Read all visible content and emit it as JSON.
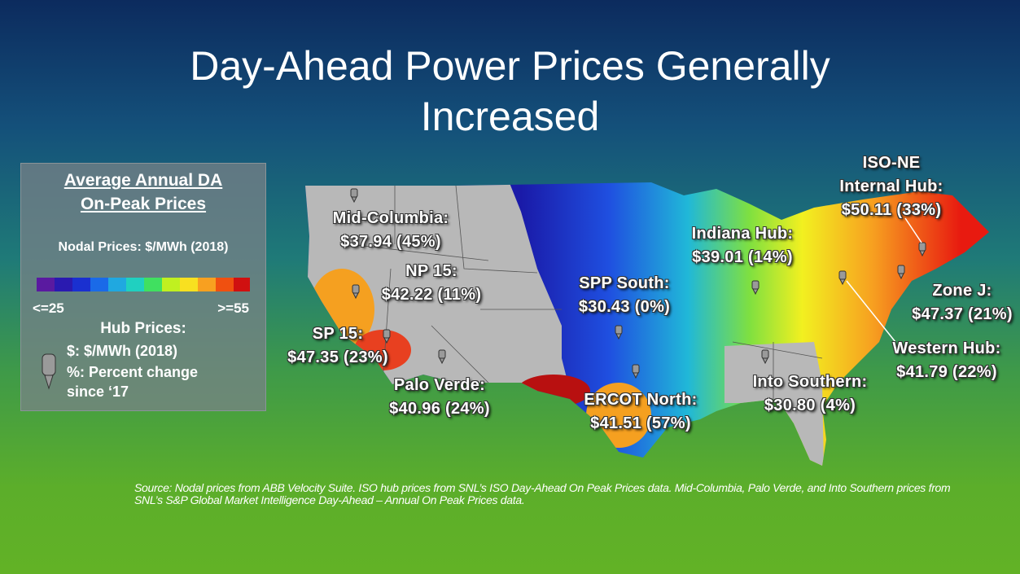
{
  "title": "Day-Ahead Power Prices Generally Increased",
  "legend": {
    "heading": "Average Annual DA On-Peak Prices",
    "nodal": "Nodal Prices: $/MWh (2018)",
    "scale_low": "<=25",
    "scale_high": ">=55",
    "hub_heading": "Hub Prices:",
    "hub_price": "$: $/MWh (2018)",
    "hub_change": "%: Percent change since ‘17"
  },
  "hubs": [
    {
      "lines": [
        "Mid-Columbia:",
        "$37.94 (45%)"
      ]
    },
    {
      "lines": [
        "NP 15:",
        "$42.22 (11%)"
      ]
    },
    {
      "lines": [
        "SP 15:",
        "$47.35 (23%)"
      ]
    },
    {
      "lines": [
        "Palo Verde:",
        "$40.96 (24%)"
      ]
    },
    {
      "lines": [
        "SPP South:",
        "$30.43 (0%)"
      ]
    },
    {
      "lines": [
        "ERCOT North:",
        "$41.51 (57%)"
      ]
    },
    {
      "lines": [
        "Indiana Hub:",
        "$39.01 (14%)"
      ]
    },
    {
      "lines": [
        "Into Southern:",
        "$30.80 (4%)"
      ]
    },
    {
      "lines": [
        "ISO-NE",
        "Internal Hub:",
        "$50.11 (33%)"
      ]
    },
    {
      "lines": [
        "Zone J:",
        "$47.37 (21%)"
      ]
    },
    {
      "lines": [
        "Western Hub:",
        "$41.79 (22%)"
      ]
    }
  ],
  "source": "Source: Nodal prices from ABB Velocity Suite. ISO hub prices from SNL’s ISO Day-Ahead On Peak Prices data. Mid-Columbia, Palo Verde, and Into Southern prices from SNL’s S&P Global Market Intelligence Day-Ahead – Annual On Peak Prices data."
}
